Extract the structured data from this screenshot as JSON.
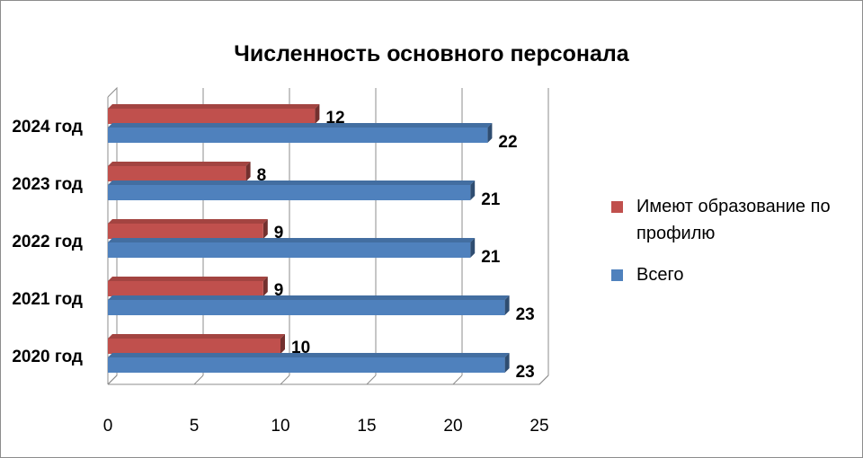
{
  "chart_data": {
    "type": "bar",
    "orientation": "horizontal",
    "title": "Численность основного персонала",
    "categories": [
      "2020 год",
      "2021 год",
      "2022 год",
      "2023 год",
      "2024 год"
    ],
    "series": [
      {
        "name": "Имеют образование по профилю",
        "values": [
          10,
          9,
          9,
          8,
          12
        ],
        "color": "#c0504d"
      },
      {
        "name": "Всего",
        "values": [
          23,
          23,
          21,
          21,
          22
        ],
        "color": "#4f81bd"
      }
    ],
    "xlim": [
      0,
      25
    ],
    "xticks": [
      "0",
      "5",
      "10",
      "15",
      "20",
      "25"
    ],
    "grid": true,
    "legend_position": "right"
  }
}
